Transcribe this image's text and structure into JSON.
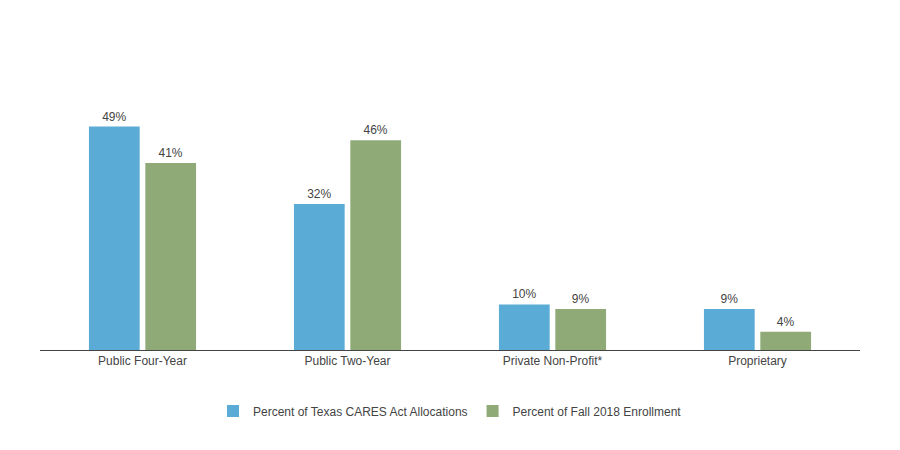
{
  "chart_data": {
    "type": "bar",
    "categories": [
      "Public Four-Year",
      "Public Two-Year",
      "Private Non-Profit*",
      "Proprietary"
    ],
    "series": [
      {
        "name": "Percent of Texas CARES Act Allocations",
        "color": "#5aacd6",
        "values": [
          49,
          32,
          10,
          9
        ],
        "value_labels": [
          "49%",
          "32%",
          "10%",
          "9%"
        ]
      },
      {
        "name": "Percent of Fall 2018 Enrollment",
        "color": "#8faa76",
        "values": [
          41,
          46,
          9,
          4
        ],
        "value_labels": [
          "41%",
          "46%",
          "9%",
          "4%"
        ]
      }
    ],
    "ylim": [
      0,
      68
    ],
    "grid": false,
    "legend": "bottom",
    "data_labels": true,
    "tick_labels": "x"
  }
}
